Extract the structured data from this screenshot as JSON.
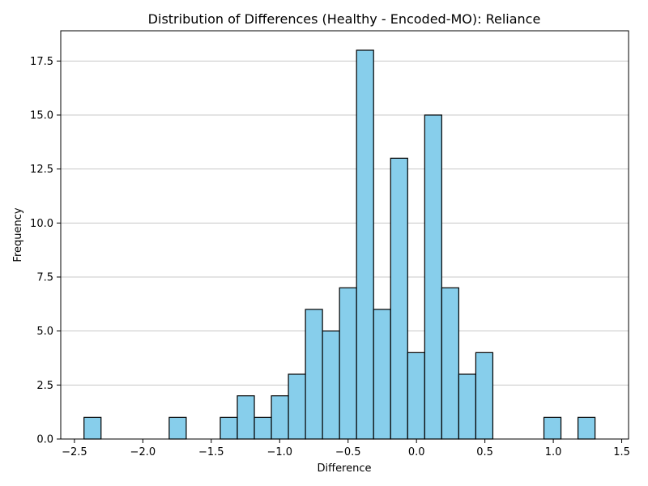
{
  "chart_data": {
    "type": "bar",
    "subtype": "histogram",
    "title": "Distribution of Differences (Healthy - Encoded-MO): Reliance",
    "xlabel": "Difference",
    "ylabel": "Frequency",
    "xlim": [
      -2.6,
      1.55
    ],
    "ylim": [
      0,
      18.9
    ],
    "bin_start": -2.43,
    "bin_width": 0.1245,
    "values": [
      1,
      0,
      0,
      0,
      0,
      1,
      0,
      0,
      1,
      2,
      1,
      2,
      3,
      6,
      5,
      7,
      18,
      6,
      13,
      4,
      15,
      7,
      3,
      4,
      0,
      0,
      0,
      1,
      0,
      1
    ],
    "x_ticks": [
      -2.5,
      -2.0,
      -1.5,
      -1.0,
      -0.5,
      0.0,
      0.5,
      1.0,
      1.5
    ],
    "x_tick_labels": [
      "−2.5",
      "−2.0",
      "−1.5",
      "−1.0",
      "−0.5",
      "0.0",
      "0.5",
      "1.0",
      "1.5"
    ],
    "y_ticks": [
      0.0,
      2.5,
      5.0,
      7.5,
      10.0,
      12.5,
      15.0,
      17.5
    ],
    "y_tick_labels": [
      "0.0",
      "2.5",
      "5.0",
      "7.5",
      "10.0",
      "12.5",
      "15.0",
      "17.5"
    ],
    "grid": "y",
    "bar_color": "#87ceeb",
    "edge_color": "#000000",
    "grid_color": "#c8c8c8"
  }
}
